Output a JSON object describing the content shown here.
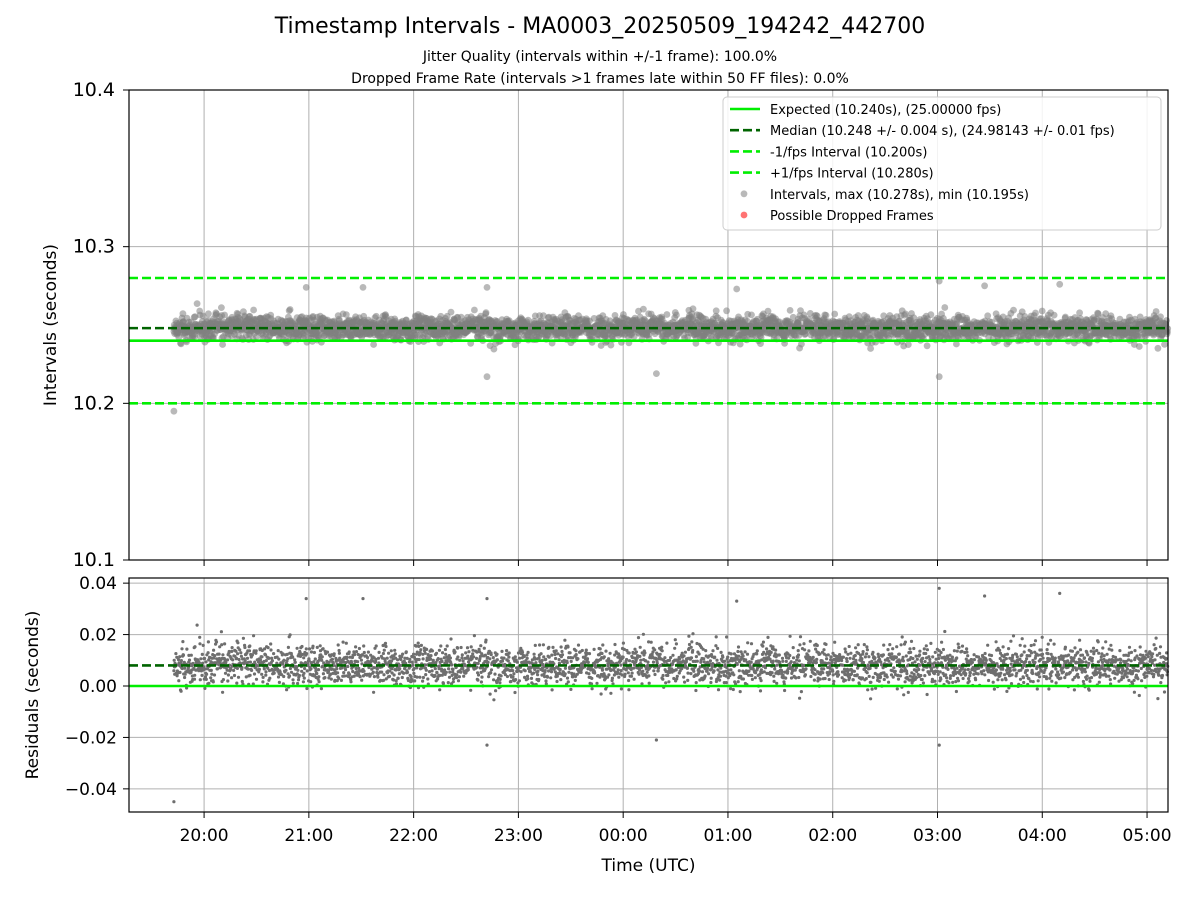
{
  "figure": {
    "title": "Timestamp Intervals - MA0003_20250509_194242_442700",
    "subtitle_1": "Jitter Quality (intervals within +/-1 frame): 100.0%",
    "subtitle_2": "Dropped Frame Rate (intervals >1 frames late within 50 FF files): 0.0%"
  },
  "legend": {
    "placement": "top-right",
    "items": [
      {
        "label": "Expected (10.240s), (25.00000 fps)",
        "style": "solid-line",
        "color": "#00ee00"
      },
      {
        "label": "Median (10.248 +/- 0.004 s), (24.98143 +/- 0.01 fps)",
        "style": "dashed-line",
        "color": "#006400"
      },
      {
        "label": "-1/fps Interval (10.200s)",
        "style": "dashed-line",
        "color": "#00ee00"
      },
      {
        "label": "+1/fps Interval (10.280s)",
        "style": "dashed-line",
        "color": "#00ee00"
      },
      {
        "label": "Intervals, max (10.278s), min (10.195s)",
        "style": "marker",
        "color": "#808080"
      },
      {
        "label": "Possible Dropped Frames",
        "style": "marker",
        "color": "#ff0000"
      }
    ]
  },
  "chart_data": [
    {
      "type": "scatter",
      "panel": "intervals",
      "xlabel": "",
      "ylabel": "Intervals (seconds)",
      "ylim": [
        10.1,
        10.4
      ],
      "yticks": [
        10.1,
        10.2,
        10.3,
        10.4
      ],
      "ytick_labels": [
        "10.1",
        "10.2",
        "10.3",
        "10.4"
      ],
      "xlim_utc": [
        "2025-05-09T19:17:00",
        "2025-05-10T05:12:00"
      ],
      "grid": true,
      "reference_lines": [
        {
          "name": "Expected",
          "y": 10.24,
          "style": "solid",
          "color": "#00ee00"
        },
        {
          "name": "Median",
          "y": 10.248,
          "style": "dashed",
          "color": "#006400"
        },
        {
          "name": "-1/fps Interval",
          "y": 10.2,
          "style": "dashed",
          "color": "#00ee00"
        },
        {
          "name": "+1/fps Interval",
          "y": 10.28,
          "style": "dashed",
          "color": "#00ee00"
        }
      ],
      "series": [
        {
          "name": "Intervals",
          "color": "#808080",
          "x_range_utc": [
            "2025-05-09T19:42:42",
            "2025-05-10T05:12:00"
          ],
          "sample_interval_s": 10.248,
          "count_approx": 3430,
          "y_median": 10.248,
          "y_spread_sd": 0.004,
          "y_max": 10.278,
          "y_min": 10.195,
          "notable_points": [
            {
              "x": "2025-05-09T19:42:42",
              "y": 10.195
            },
            {
              "x": "2025-05-09T20:58:30",
              "y": 10.274
            },
            {
              "x": "2025-05-09T21:31:00",
              "y": 10.274
            },
            {
              "x": "2025-05-09T22:42:00",
              "y": 10.274
            },
            {
              "x": "2025-05-09T22:42:00",
              "y": 10.217
            },
            {
              "x": "2025-05-10T01:05:00",
              "y": 10.273
            },
            {
              "x": "2025-05-10T03:01:00",
              "y": 10.278
            },
            {
              "x": "2025-05-10T03:01:00",
              "y": 10.217
            },
            {
              "x": "2025-05-10T03:27:00",
              "y": 10.275
            },
            {
              "x": "2025-05-10T04:10:00",
              "y": 10.276
            },
            {
              "x": "2025-05-10T00:19:00",
              "y": 10.219
            }
          ]
        },
        {
          "name": "Possible Dropped Frames",
          "color": "#ff0000",
          "points": []
        }
      ]
    },
    {
      "type": "scatter",
      "panel": "residuals",
      "xlabel": "Time (UTC)",
      "ylabel": "Residuals (seconds)",
      "ylim": [
        -0.049,
        0.042
      ],
      "yticks": [
        -0.04,
        -0.02,
        0.0,
        0.02,
        0.04
      ],
      "ytick_labels": [
        "−0.04",
        "−0.02",
        "0.00",
        "0.02",
        "0.04"
      ],
      "xticks_utc": [
        "2025-05-09T20:00:00",
        "2025-05-09T21:00:00",
        "2025-05-09T22:00:00",
        "2025-05-09T23:00:00",
        "2025-05-10T00:00:00",
        "2025-05-10T01:00:00",
        "2025-05-10T02:00:00",
        "2025-05-10T03:00:00",
        "2025-05-10T04:00:00",
        "2025-05-10T05:00:00"
      ],
      "xtick_labels": [
        "20:00",
        "21:00",
        "22:00",
        "23:00",
        "00:00",
        "01:00",
        "02:00",
        "03:00",
        "04:00",
        "05:00"
      ],
      "grid": true,
      "reference_lines": [
        {
          "name": "Expected",
          "y": 0.0,
          "style": "solid",
          "color": "#00ee00"
        },
        {
          "name": "Median",
          "y": 0.008,
          "style": "dashed",
          "color": "#006400"
        }
      ],
      "series": [
        {
          "name": "Residuals",
          "color": "#808080",
          "y_median": 0.008,
          "y_spread_sd": 0.004,
          "y_max": 0.038,
          "y_min": -0.045
        }
      ]
    }
  ]
}
